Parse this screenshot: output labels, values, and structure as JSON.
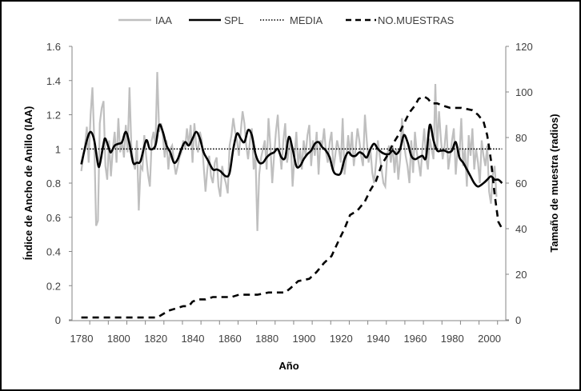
{
  "chart_data": {
    "type": "line",
    "title": "",
    "xlabel": "Año",
    "ylabel": "Índice de Ancho de Anillo (IAA)",
    "ylabel_right": "Tamaño de muestra (radios)",
    "xlim": [
      1780,
      2014
    ],
    "ylim": [
      0,
      1.6
    ],
    "ylim_right": [
      0,
      120
    ],
    "x_ticks": [
      "1780",
      "1800",
      "1820",
      "1840",
      "1860",
      "1880",
      "1900",
      "1920",
      "1940",
      "1960",
      "1980",
      "2000"
    ],
    "y_ticks": [
      "0",
      "0.2",
      "0.4",
      "0.6",
      "0.8",
      "1",
      "1.2",
      "1.4",
      "1.6"
    ],
    "y_ticks_right": [
      "0",
      "20",
      "40",
      "60",
      "80",
      "100",
      "120"
    ],
    "grid": false,
    "legend_position": "top",
    "legend": [
      "IAA",
      "SPL",
      "MEDIA",
      "NO.MUESTRAS"
    ],
    "colors": {
      "IAA": "#bfbfbf",
      "SPL": "#000000",
      "MEDIA": "#000000",
      "NO.MUESTRAS": "#000000"
    },
    "series": [
      {
        "name": "IAA",
        "axis": "left",
        "x_start": 1785,
        "values": [
          0.87,
          0.95,
          1.02,
          1.13,
          0.92,
          1.2,
          1.36,
          1.05,
          0.55,
          0.58,
          1.15,
          1.24,
          1.28,
          0.9,
          0.82,
          1.05,
          0.84,
          1.0,
          1.1,
          0.92,
          1.18,
          0.98,
          1.05,
          0.95,
          1.14,
          0.98,
          1.36,
          1.02,
          0.92,
          0.88,
          1.05,
          0.64,
          0.9,
          0.88,
          1.08,
          0.96,
          0.85,
          0.78,
          1.05,
          1.1,
          1.0,
          1.45,
          1.1,
          1.15,
          1.08,
          0.95,
          1.05,
          0.88,
          1.0,
          1.02,
          0.92,
          0.85,
          0.9,
          0.95,
          0.98,
          1.05,
          1.0,
          1.12,
          1.02,
          1.14,
          0.92,
          1.15,
          1.02,
          0.98,
          1.1,
          1.05,
          0.9,
          0.75,
          0.88,
          0.96,
          0.84,
          0.8,
          0.92,
          0.95,
          0.78,
          0.72,
          0.9,
          0.84,
          0.8,
          0.74,
          1.02,
          1.08,
          1.18,
          1.1,
          1.05,
          0.96,
          1.1,
          1.22,
          1.15,
          1.02,
          0.94,
          1.05,
          1.12,
          0.88,
          0.96,
          0.52,
          0.85,
          0.95,
          1.0,
          1.05,
          0.88,
          1.18,
          1.02,
          0.8,
          0.96,
          1.1,
          1.2,
          1.0,
          0.88,
          1.05,
          1.15,
          0.92,
          1.0,
          1.05,
          0.78,
          0.95,
          1.1,
          0.9,
          1.0,
          0.88,
          1.05,
          0.96,
          1.08,
          1.14,
          0.9,
          1.05,
          0.96,
          1.1,
          0.85,
          1.05,
          1.02,
          1.12,
          0.98,
          0.92,
          1.04,
          1.1,
          0.88,
          0.96,
          1.05,
          1.0,
          0.92,
          1.18,
          0.85,
          0.95,
          1.08,
          0.96,
          1.1,
          0.9,
          1.0,
          1.12,
          1.05,
          0.96,
          0.9,
          1.2,
          1.05,
          0.92,
          1.0,
          0.86,
          0.8,
          0.92,
          1.05,
          0.96,
          0.88,
          0.8,
          0.78,
          0.96,
          1.02,
          0.92,
          1.02,
          0.86,
          1.0,
          0.82,
          0.94,
          1.18,
          1.04,
          0.96,
          0.9,
          0.8,
          1.05,
          0.86,
          1.1,
          0.98,
          0.92,
          0.84,
          1.0,
          1.12,
          0.95,
          0.88,
          1.06,
          1.0,
          0.94,
          1.38,
          1.0,
          1.22,
          1.06,
          0.94,
          1.02,
          1.14,
          0.88,
          0.96,
          1.05,
          1.12,
          0.85,
          1.0,
          0.96,
          1.18,
          0.9,
          1.0,
          0.78,
          1.08,
          0.96,
          1.12,
          0.88,
          1.0,
          0.92,
          0.8,
          1.05,
          0.96,
          0.9,
          1.02,
          0.75,
          0.68,
          0.85,
          0.9,
          0.72
        ]
      },
      {
        "name": "SPL",
        "axis": "left",
        "points": [
          [
            1785,
            0.91
          ],
          [
            1788,
            1.05
          ],
          [
            1790,
            1.1
          ],
          [
            1792,
            1.05
          ],
          [
            1794,
            0.91
          ],
          [
            1795,
            0.91
          ],
          [
            1797,
            1.03
          ],
          [
            1798,
            1.06
          ],
          [
            1800,
            1.0
          ],
          [
            1801,
            0.98
          ],
          [
            1803,
            1.02
          ],
          [
            1805,
            1.03
          ],
          [
            1807,
            1.04
          ],
          [
            1809,
            1.1
          ],
          [
            1811,
            1.03
          ],
          [
            1813,
            0.92
          ],
          [
            1815,
            0.92
          ],
          [
            1817,
            0.93
          ],
          [
            1820,
            1.05
          ],
          [
            1822,
            1.0
          ],
          [
            1825,
            1.02
          ],
          [
            1827,
            1.14
          ],
          [
            1829,
            1.1
          ],
          [
            1831,
            1.02
          ],
          [
            1833,
            0.98
          ],
          [
            1835,
            0.92
          ],
          [
            1837,
            0.94
          ],
          [
            1839,
            1.0
          ],
          [
            1841,
            1.04
          ],
          [
            1843,
            1.02
          ],
          [
            1845,
            1.06
          ],
          [
            1847,
            1.1
          ],
          [
            1849,
            1.06
          ],
          [
            1851,
            0.98
          ],
          [
            1853,
            0.94
          ],
          [
            1856,
            0.88
          ],
          [
            1858,
            0.88
          ],
          [
            1860,
            0.87
          ],
          [
            1863,
            0.84
          ],
          [
            1865,
            0.86
          ],
          [
            1867,
            1.0
          ],
          [
            1869,
            1.09
          ],
          [
            1871,
            1.06
          ],
          [
            1873,
            1.04
          ],
          [
            1875,
            1.11
          ],
          [
            1877,
            1.08
          ],
          [
            1879,
            0.97
          ],
          [
            1881,
            0.92
          ],
          [
            1883,
            0.92
          ],
          [
            1885,
            0.95
          ],
          [
            1887,
            0.97
          ],
          [
            1889,
            0.98
          ],
          [
            1891,
            1.0
          ],
          [
            1893,
            0.95
          ],
          [
            1895,
            0.95
          ],
          [
            1897,
            1.07
          ],
          [
            1899,
            1.0
          ],
          [
            1901,
            0.9
          ],
          [
            1903,
            0.9
          ],
          [
            1905,
            0.94
          ],
          [
            1907,
            0.97
          ],
          [
            1909,
            0.99
          ],
          [
            1911,
            1.03
          ],
          [
            1913,
            1.04
          ],
          [
            1915,
            1.01
          ],
          [
            1917,
            0.99
          ],
          [
            1919,
            0.95
          ],
          [
            1921,
            0.87
          ],
          [
            1923,
            0.85
          ],
          [
            1925,
            0.86
          ],
          [
            1927,
            0.94
          ],
          [
            1929,
            0.98
          ],
          [
            1931,
            0.96
          ],
          [
            1933,
            0.96
          ],
          [
            1935,
            0.98
          ],
          [
            1937,
            0.97
          ],
          [
            1939,
            0.95
          ],
          [
            1941,
            1.0
          ],
          [
            1943,
            1.03
          ],
          [
            1945,
            1.0
          ],
          [
            1947,
            0.98
          ],
          [
            1949,
            0.97
          ],
          [
            1951,
            0.97
          ],
          [
            1953,
            0.99
          ],
          [
            1955,
            0.97
          ],
          [
            1957,
            1.0
          ],
          [
            1959,
            1.08
          ],
          [
            1961,
            1.04
          ],
          [
            1963,
            0.96
          ],
          [
            1965,
            0.94
          ],
          [
            1967,
            0.95
          ],
          [
            1969,
            0.96
          ],
          [
            1971,
            0.95
          ],
          [
            1973,
            1.14
          ],
          [
            1975,
            1.05
          ],
          [
            1977,
            0.99
          ],
          [
            1979,
            0.99
          ],
          [
            1981,
            0.99
          ],
          [
            1983,
            0.98
          ],
          [
            1985,
            0.99
          ],
          [
            1987,
            1.04
          ],
          [
            1989,
            0.95
          ],
          [
            1991,
            0.92
          ],
          [
            1993,
            0.88
          ],
          [
            1995,
            0.84
          ],
          [
            1997,
            0.8
          ],
          [
            1999,
            0.78
          ],
          [
            2002,
            0.8
          ],
          [
            2004,
            0.82
          ],
          [
            2006,
            0.84
          ],
          [
            2008,
            0.82
          ],
          [
            2010,
            0.82
          ],
          [
            2012,
            0.8
          ]
        ]
      },
      {
        "name": "MEDIA",
        "axis": "left",
        "points": [
          [
            1785,
            1.0
          ],
          [
            2012,
            1.0
          ]
        ]
      },
      {
        "name": "NO.MUESTRAS",
        "axis": "right",
        "points": [
          [
            1785,
            1
          ],
          [
            1826,
            1
          ],
          [
            1828,
            2
          ],
          [
            1832,
            4
          ],
          [
            1836,
            5
          ],
          [
            1840,
            6
          ],
          [
            1843,
            6
          ],
          [
            1845,
            8
          ],
          [
            1848,
            9
          ],
          [
            1852,
            9
          ],
          [
            1856,
            10
          ],
          [
            1860,
            10
          ],
          [
            1866,
            10
          ],
          [
            1870,
            11
          ],
          [
            1880,
            11
          ],
          [
            1886,
            12
          ],
          [
            1895,
            12
          ],
          [
            1898,
            14
          ],
          [
            1902,
            17
          ],
          [
            1908,
            18
          ],
          [
            1912,
            21
          ],
          [
            1916,
            25
          ],
          [
            1920,
            28
          ],
          [
            1924,
            35
          ],
          [
            1927,
            40
          ],
          [
            1930,
            46
          ],
          [
            1934,
            48
          ],
          [
            1938,
            52
          ],
          [
            1941,
            57
          ],
          [
            1944,
            61
          ],
          [
            1947,
            68
          ],
          [
            1950,
            72
          ],
          [
            1953,
            77
          ],
          [
            1956,
            81
          ],
          [
            1959,
            86
          ],
          [
            1962,
            91
          ],
          [
            1965,
            94
          ],
          [
            1967,
            97
          ],
          [
            1970,
            98
          ],
          [
            1972,
            97
          ],
          [
            1974,
            95
          ],
          [
            1977,
            95
          ],
          [
            1980,
            94
          ],
          [
            1984,
            93
          ],
          [
            1990,
            93
          ],
          [
            1996,
            92
          ],
          [
            1999,
            90
          ],
          [
            2002,
            87
          ],
          [
            2004,
            81
          ],
          [
            2006,
            70
          ],
          [
            2008,
            55
          ],
          [
            2010,
            43
          ],
          [
            2012,
            40
          ]
        ]
      }
    ]
  }
}
